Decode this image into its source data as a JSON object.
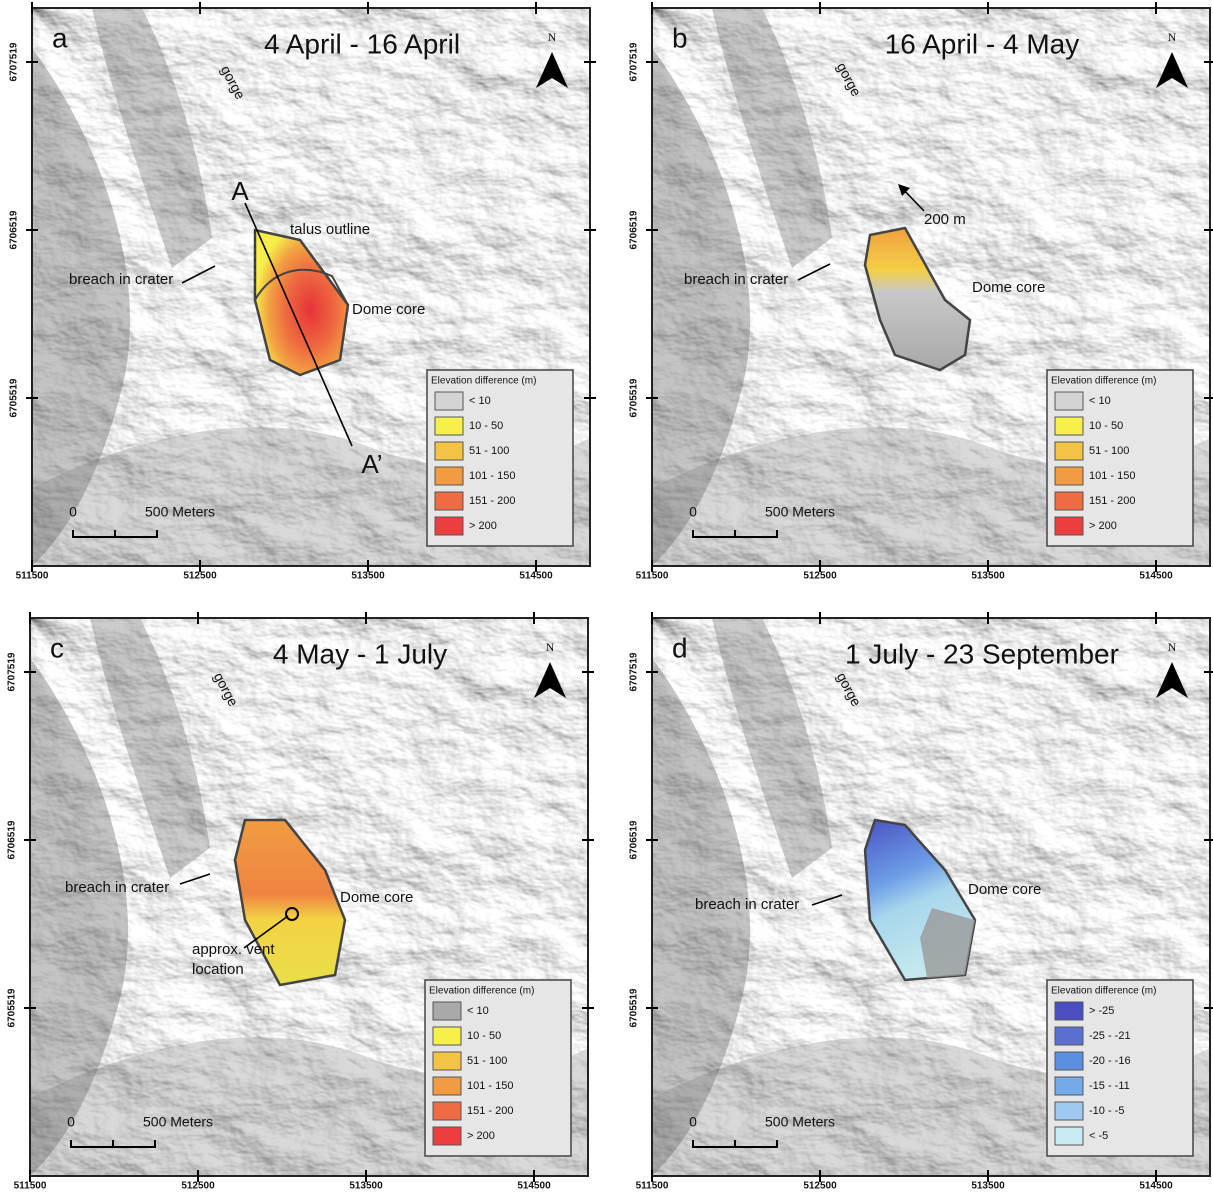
{
  "panels": [
    {
      "letter": "a",
      "title": "4 April - 16 April",
      "north": "N",
      "annotations": [
        "gorge",
        "A",
        "A’",
        "talus outline",
        "breach in crater",
        "Dome core"
      ],
      "legend": {
        "title": "Elevation difference (m)",
        "items": [
          {
            "label": "< 10",
            "color": "#d4d4d4"
          },
          {
            "label": "10 - 50",
            "color": "#f6f04a"
          },
          {
            "label": "51 - 100",
            "color": "#f3c444"
          },
          {
            "label": "101 - 150",
            "color": "#f19c42"
          },
          {
            "label": "151 - 200",
            "color": "#ef6c42"
          },
          {
            "label": "> 200",
            "color": "#ec3e3e"
          }
        ]
      },
      "scale_bar": {
        "start": "0",
        "end": "500 Meters"
      },
      "x_ticks": [
        "511500",
        "512500",
        "513500",
        "514500"
      ],
      "y_ticks": [
        "6707519",
        "6706519",
        "6705519"
      ]
    },
    {
      "letter": "b",
      "title": "16 April - 4 May",
      "north": "N",
      "annotations": [
        "gorge",
        "200 m",
        "breach in crater",
        "Dome core"
      ],
      "legend": {
        "title": "Elevation difference (m)",
        "items": [
          {
            "label": "< 10",
            "color": "#d4d4d4"
          },
          {
            "label": "10 - 50",
            "color": "#f6f04a"
          },
          {
            "label": "51 - 100",
            "color": "#f3c444"
          },
          {
            "label": "101 - 150",
            "color": "#f19c42"
          },
          {
            "label": "151 - 200",
            "color": "#ef6c42"
          },
          {
            "label": "> 200",
            "color": "#ec3e3e"
          }
        ]
      },
      "scale_bar": {
        "start": "0",
        "end": "500 Meters"
      },
      "x_ticks": [
        "511500",
        "512500",
        "513500",
        "514500"
      ],
      "y_ticks": [
        "6707519",
        "6706519",
        "6705519"
      ]
    },
    {
      "letter": "c",
      "title": "4 May - 1 July",
      "north": "N",
      "annotations": [
        "gorge",
        "breach in crater",
        "Dome core",
        "approx. vent",
        "location"
      ],
      "legend": {
        "title": "Elevation difference (m)",
        "items": [
          {
            "label": "< 10",
            "color": "#a9a9a9"
          },
          {
            "label": "10 - 50",
            "color": "#f6f04a"
          },
          {
            "label": "51 - 100",
            "color": "#f3c444"
          },
          {
            "label": "101 - 150",
            "color": "#f19c42"
          },
          {
            "label": "151 - 200",
            "color": "#ef6c42"
          },
          {
            "label": "> 200",
            "color": "#ec3e3e"
          }
        ]
      },
      "scale_bar": {
        "start": "0",
        "end": "500 Meters"
      },
      "x_ticks": [
        "511500",
        "512500",
        "513500",
        "514500"
      ],
      "y_ticks": [
        "6707519",
        "6706519",
        "6705519"
      ]
    },
    {
      "letter": "d",
      "title": "1 July - 23 September",
      "north": "N",
      "annotations": [
        "gorge",
        "breach in crater",
        "Dome core"
      ],
      "legend": {
        "title": "Elevation difference (m)",
        "items": [
          {
            "label": "> -25",
            "color": "#4a4ec0"
          },
          {
            "label": "-25 - -21",
            "color": "#5a6fd0"
          },
          {
            "label": "-20 - -16",
            "color": "#5b8fe0"
          },
          {
            "label": "-15 - -11",
            "color": "#74aae8"
          },
          {
            "label": "-10 - -5",
            "color": "#9dcaee"
          },
          {
            "label": "< -5",
            "color": "#c8ecf2"
          }
        ]
      },
      "scale_bar": {
        "start": "0",
        "end": "500 Meters"
      },
      "x_ticks": [
        "511500",
        "512500",
        "513500",
        "514500"
      ],
      "y_ticks": [
        "6707519",
        "6706519",
        "6705519"
      ]
    }
  ]
}
